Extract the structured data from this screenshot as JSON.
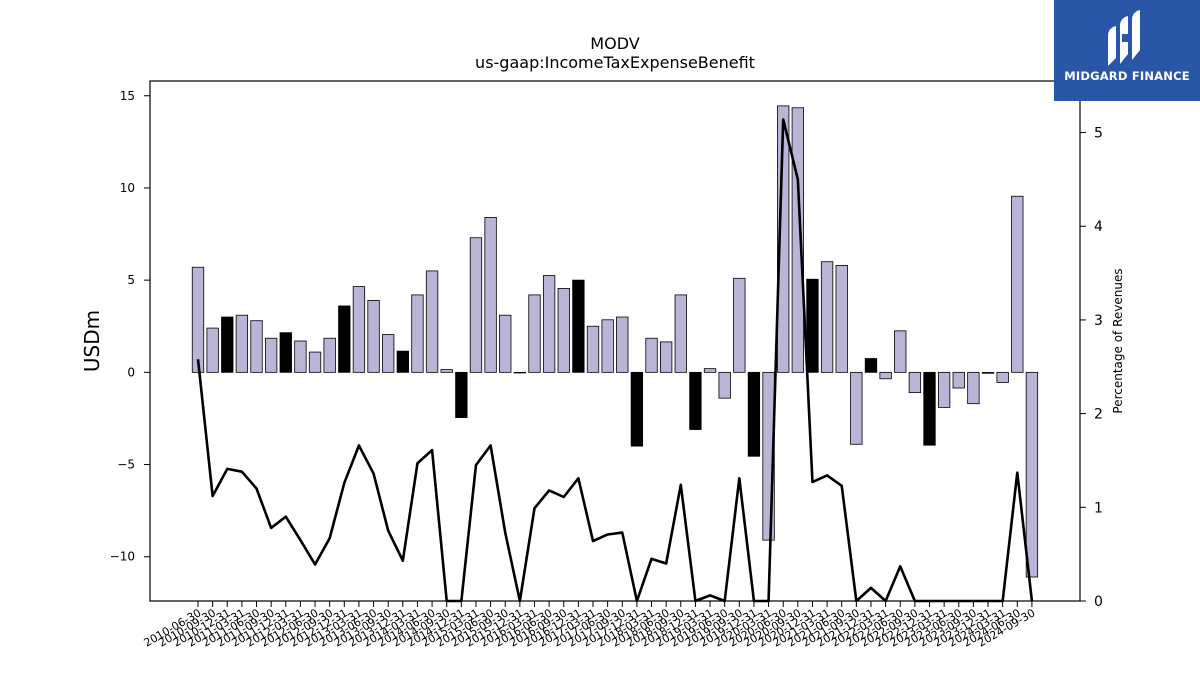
{
  "chart_data": {
    "type": "bar",
    "title": "MODV",
    "subtitle": "us-gaap:IncomeTaxExpenseBenefit",
    "ylabel": "USDm",
    "y2label": "Percentage of Revenues",
    "ylim": [
      -12.4,
      15.8
    ],
    "y2lim": [
      0,
      5.55
    ],
    "yticks": [
      15,
      10,
      5,
      0,
      -5,
      -10
    ],
    "y2ticks": [
      0,
      1,
      2,
      3,
      4,
      5
    ],
    "categories": [
      "2010-06-30",
      "2010-09-30",
      "2010-12-31",
      "2011-03-31",
      "2011-06-30",
      "2011-09-30",
      "2011-12-31",
      "2012-03-31",
      "2012-06-30",
      "2012-09-30",
      "2012-12-31",
      "2013-03-31",
      "2013-06-30",
      "2013-09-30",
      "2013-12-31",
      "2014-03-31",
      "2014-06-30",
      "2014-09-30",
      "2014-12-31",
      "2015-03-31",
      "2015-06-30",
      "2015-09-30",
      "2015-12-31",
      "2016-03-31",
      "2016-06-30",
      "2016-09-30",
      "2016-12-31",
      "2017-03-31",
      "2017-06-30",
      "2017-09-30",
      "2017-12-31",
      "2018-03-31",
      "2018-06-30",
      "2018-09-30",
      "2018-12-31",
      "2019-03-31",
      "2019-06-30",
      "2019-09-30",
      "2019-12-31",
      "2020-03-31",
      "2020-06-30",
      "2020-09-30",
      "2020-12-31",
      "2021-03-31",
      "2021-06-30",
      "2021-09-30",
      "2021-12-31",
      "2022-03-31",
      "2022-06-30",
      "2022-09-30",
      "2022-12-31",
      "2023-03-31",
      "2023-06-30",
      "2023-09-30",
      "2023-12-31",
      "2024-03-31",
      "2024-06-30",
      "2024-09-30"
    ],
    "values": [
      5.7,
      2.4,
      3.0,
      3.1,
      2.8,
      1.85,
      2.15,
      1.7,
      1.1,
      1.85,
      3.6,
      4.65,
      3.9,
      2.05,
      1.15,
      4.2,
      5.5,
      0.15,
      -2.45,
      7.3,
      8.4,
      3.1,
      0.0,
      4.2,
      5.25,
      4.55,
      5.0,
      2.5,
      2.85,
      3.0,
      -4.0,
      1.85,
      1.65,
      4.2,
      -3.1,
      0.2,
      -1.4,
      5.1,
      -4.55,
      -9.1,
      14.45,
      14.35,
      5.05,
      6.0,
      5.8,
      -3.9,
      0.75,
      -0.35,
      2.25,
      -1.1,
      -3.95,
      -1.9,
      -0.85,
      -1.7,
      -0.05,
      -0.55,
      9.55,
      -11.1
    ],
    "highlight": [
      false,
      false,
      true,
      false,
      false,
      false,
      true,
      false,
      false,
      false,
      true,
      false,
      false,
      false,
      true,
      false,
      false,
      false,
      true,
      false,
      false,
      false,
      false,
      false,
      false,
      false,
      true,
      false,
      false,
      false,
      true,
      false,
      false,
      false,
      true,
      false,
      false,
      false,
      true,
      false,
      false,
      false,
      true,
      false,
      false,
      false,
      true,
      false,
      false,
      false,
      true,
      false,
      false,
      false,
      false,
      false,
      false,
      false
    ],
    "line_values": [
      2.58,
      1.12,
      1.41,
      1.38,
      1.2,
      0.78,
      0.9,
      0.65,
      0.39,
      0.67,
      1.26,
      1.66,
      1.36,
      0.75,
      0.43,
      1.47,
      1.61,
      0.0,
      0.0,
      1.45,
      1.66,
      0.73,
      0.0,
      0.99,
      1.18,
      1.11,
      1.31,
      0.64,
      0.71,
      0.73,
      0.0,
      0.45,
      0.4,
      1.24,
      0.0,
      0.06,
      0.0,
      1.31,
      0.0,
      0.0,
      5.14,
      4.5,
      1.27,
      1.34,
      1.23,
      0.0,
      0.14,
      0.0,
      0.37,
      0.0,
      0.0,
      0.0,
      0.0,
      0.0,
      0.0,
      0.0,
      1.37,
      0.0
    ],
    "colors": {
      "bar": "#b8b5d6",
      "bar_highlight": "#000000",
      "line": "#000000",
      "edge": "#000000"
    }
  },
  "logo": {
    "text": "MIDGARD FINANCE",
    "bg": "#2a56a8"
  }
}
